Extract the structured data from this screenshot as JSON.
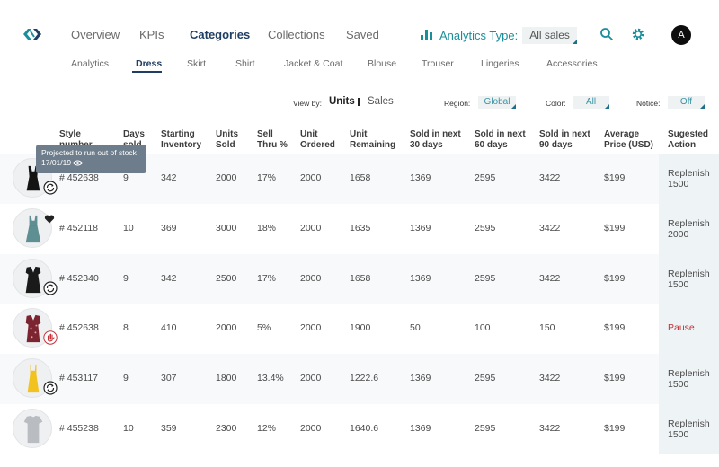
{
  "nav": {
    "items": [
      {
        "label": "Overview",
        "active": false
      },
      {
        "label": "KPIs",
        "active": false
      },
      {
        "label": "Categories",
        "active": true
      },
      {
        "label": "Collections",
        "active": false
      },
      {
        "label": "Saved",
        "active": false
      }
    ],
    "analytics_label": "Analytics Type:",
    "analytics_value": "All sales",
    "avatar_initial": "A"
  },
  "subnav": [
    {
      "label": "Analytics",
      "active": false
    },
    {
      "label": "Dress",
      "active": true
    },
    {
      "label": "Skirt",
      "active": false
    },
    {
      "label": "Shirt",
      "active": false
    },
    {
      "label": "Jacket & Coat",
      "active": false
    },
    {
      "label": "Blouse",
      "active": false
    },
    {
      "label": "Trouser",
      "active": false
    },
    {
      "label": "Lingeries",
      "active": false
    },
    {
      "label": "Accessories",
      "active": false
    }
  ],
  "filters": {
    "view_by_label": "View by:",
    "view_units": "Units",
    "view_sales": "Sales",
    "region_label": "Region:",
    "region_value": "Global",
    "color_label": "Color:",
    "color_value": "All",
    "notice_label": "Notice:",
    "notice_value": "Off"
  },
  "table": {
    "headers": [
      [
        "Style",
        "number"
      ],
      [
        "Days",
        "sold"
      ],
      [
        "Starting",
        "Inventory"
      ],
      [
        "Units",
        "Sold"
      ],
      [
        "Sell",
        "Thru %"
      ],
      [
        "Unit",
        "Ordered"
      ],
      [
        "Unit",
        "Remaining"
      ],
      [
        "Sold in next",
        "30 days"
      ],
      [
        "Sold in next",
        "60 days"
      ],
      [
        "Sold in next",
        "90 days"
      ],
      [
        "Average",
        "Price (USD)"
      ],
      [
        "Sugested",
        "Action"
      ]
    ],
    "rows": [
      {
        "style": "# 452638",
        "days": "9",
        "start": "342",
        "sold": "2000",
        "thru": "17%",
        "ordered": "2000",
        "remaining": "1658",
        "s30": "1369",
        "s60": "2595",
        "s90": "3422",
        "price": "$199",
        "action": "Replenish 1500",
        "status": "recycle-icon",
        "dress": "black-mini"
      },
      {
        "style": "# 452118",
        "days": "10",
        "start": "369",
        "sold": "3000",
        "thru": "18%",
        "ordered": "2000",
        "remaining": "1635",
        "s30": "1369",
        "s60": "2595",
        "s90": "3422",
        "price": "$199",
        "action": "Replenish 2000",
        "status": "heart-icon",
        "dress": "teal-tank"
      },
      {
        "style": "# 452340",
        "days": "9",
        "start": "342",
        "sold": "2500",
        "thru": "17%",
        "ordered": "2000",
        "remaining": "1658",
        "s30": "1369",
        "s60": "2595",
        "s90": "3422",
        "price": "$199",
        "action": "Replenish 1500",
        "status": "recycle-icon",
        "dress": "black-vneck"
      },
      {
        "style": "# 452638",
        "days": "8",
        "start": "410",
        "sold": "2000",
        "thru": "5%",
        "ordered": "2000",
        "remaining": "1900",
        "s30": "50",
        "s60": "100",
        "s90": "150",
        "price": "$199",
        "action": "Pause",
        "status": "hand-stop-icon",
        "dress": "red-floral"
      },
      {
        "style": "# 453117",
        "days": "9",
        "start": "307",
        "sold": "1800",
        "thru": "13.4%",
        "ordered": "2000",
        "remaining": "1222.6",
        "s30": "1369",
        "s60": "2595",
        "s90": "3422",
        "price": "$199",
        "action": "Replenish 1500",
        "status": "recycle-icon",
        "dress": "yellow-slip"
      },
      {
        "style": "# 455238",
        "days": "10",
        "start": "359",
        "sold": "2300",
        "thru": "12%",
        "ordered": "2000",
        "remaining": "1640.6",
        "s30": "1369",
        "s60": "2595",
        "s90": "3422",
        "price": "$199",
        "action": "Replenish 1500",
        "status": "none",
        "dress": "grey-tee"
      }
    ]
  },
  "tooltip": {
    "line1": "Projected to run out of stock",
    "line2": "17/01/19"
  },
  "colors": {
    "accent": "#1a8f9a",
    "nav_active": "#1f3e63",
    "pause": "#c2333a",
    "row_shade": "#f7f9fa",
    "action_bg": "#eef3f5"
  }
}
